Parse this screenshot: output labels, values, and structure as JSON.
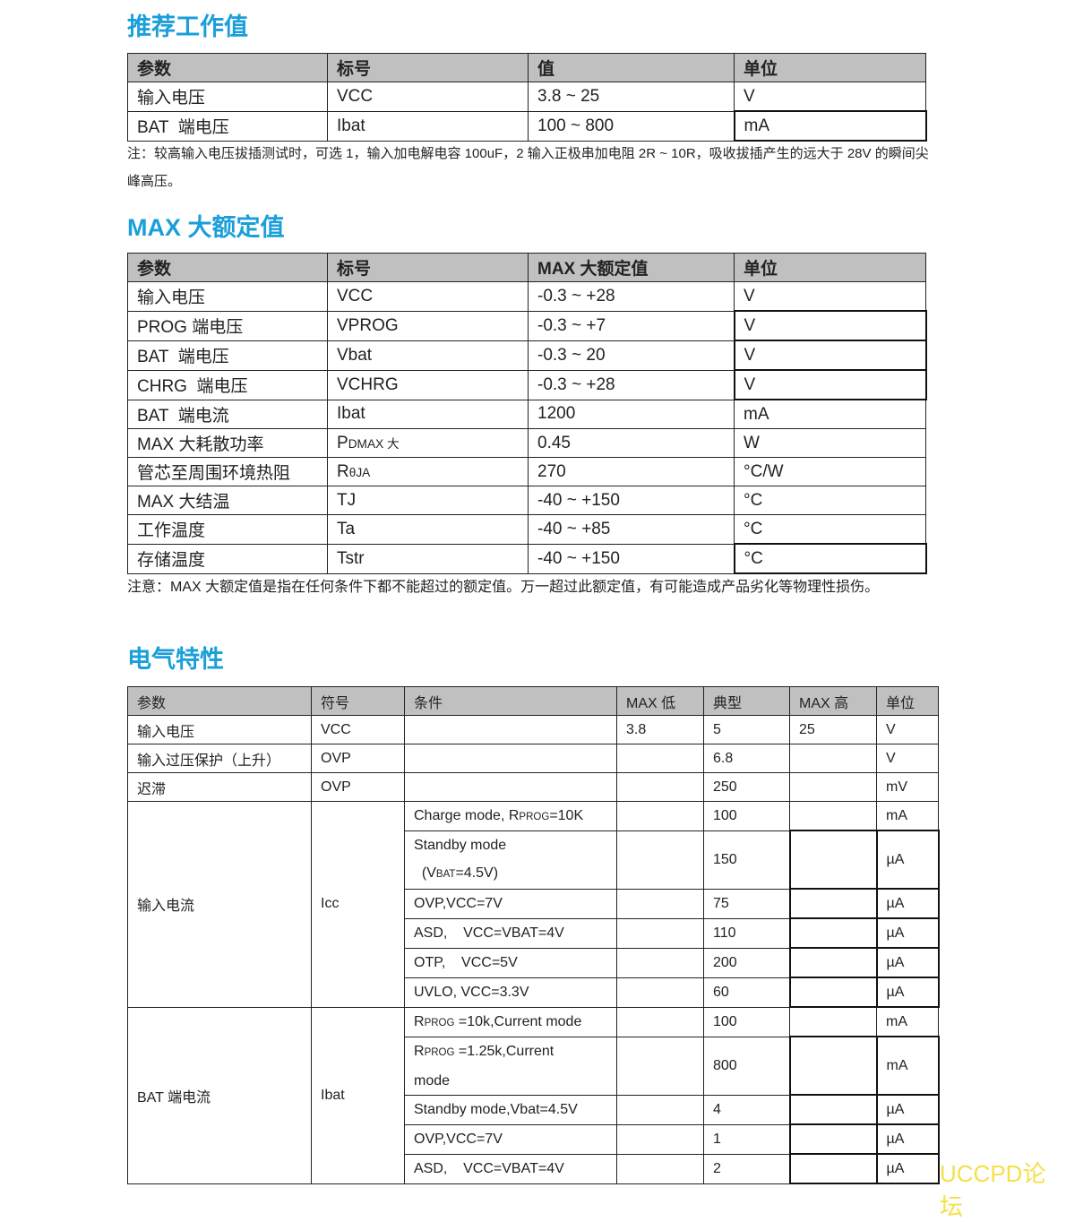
{
  "sections": {
    "recommended": {
      "title": "推荐工作值",
      "headers": [
        "参数",
        "标号",
        "值",
        "单位"
      ],
      "rows": [
        [
          "输入电压",
          "VCC",
          "3.8 ~ 25",
          "V"
        ],
        [
          "BAT  端电压",
          "Ibat",
          "100 ~ 800",
          "mA"
        ]
      ],
      "note": "注：较高输入电压拔插测试时，可选 1，输入加电解电容 100uF，2 输入正极串加电阻 2R ~ 10R，吸收拔插产生的远大于 28V 的瞬间尖峰高压。"
    },
    "absmax": {
      "title": "MAX 大额定值",
      "headers": [
        "参数",
        "标号",
        "MAX 大额定值",
        "单位"
      ],
      "rows": [
        [
          "输入电压",
          "VCC",
          "-0.3 ~ +28",
          "V"
        ],
        [
          "PROG 端电压",
          "VPROG",
          "-0.3 ~ +7",
          "V"
        ],
        [
          "BAT  端电压",
          "Vbat",
          "-0.3 ~ 20",
          "V"
        ],
        [
          "CHRG  端电压",
          "VCHRG",
          "-0.3 ~ +28",
          "V"
        ],
        [
          "BAT  端电流",
          "Ibat",
          "1200",
          "mA"
        ],
        [
          "MAX 大耗散功率",
          [
            {
              "t": "P"
            },
            {
              "s": "DMAX 大"
            }
          ],
          "0.45",
          "W"
        ],
        [
          "管芯至周围环境热阻",
          [
            {
              "t": "R"
            },
            {
              "s": "θJA"
            }
          ],
          "270",
          "°C/W"
        ],
        [
          "MAX 大结温",
          "TJ",
          "-40 ~ +150",
          "°C"
        ],
        [
          "工作温度",
          "Ta",
          "-40 ~ +85",
          "°C"
        ],
        [
          "存储温度",
          "Tstr",
          "-40 ~ +150",
          "°C"
        ]
      ],
      "note": "注意：MAX 大额定值是指在任何条件下都不能超过的额定值。万一超过此额定值，有可能造成产品劣化等物理性损伤。"
    },
    "electrical": {
      "title": "电气特性",
      "headers": [
        "参数",
        "符号",
        "条件",
        "MAX 低",
        "典型",
        "MAX 高",
        "单位"
      ],
      "simple_rows": [
        [
          "输入电压",
          "VCC",
          "",
          "3.8",
          "5",
          "25",
          "V"
        ],
        [
          "输入过压保护（上升）",
          "OVP",
          "",
          "",
          "6.8",
          "",
          "V"
        ],
        [
          "迟滞",
          "OVP",
          "",
          "",
          "250",
          "",
          "mV"
        ]
      ],
      "groups": [
        {
          "param": "输入电流",
          "symbol": "Icc",
          "rows": [
            [
              [
                {
                  "t": "Charge mode, R"
                },
                {
                  "s": "PROG"
                },
                {
                  "t": "=10K"
                }
              ],
              "",
              "100",
              "",
              "mA"
            ],
            [
              [
                {
                  "t": "Standby mode"
                },
                {
                  "br": true
                },
                {
                  "t": "  (V"
                },
                {
                  "s": "BAT"
                },
                {
                  "t": "=4.5V)"
                }
              ],
              "",
              "150",
              "",
              "µA"
            ],
            [
              "OVP,VCC=7V",
              "",
              "75",
              "",
              "µA"
            ],
            [
              "ASD,    VCC=VBAT=4V",
              "",
              "110",
              "",
              "µA"
            ],
            [
              "OTP,    VCC=5V",
              "",
              "200",
              "",
              "µA"
            ],
            [
              "UVLO, VCC=3.3V",
              "",
              "60",
              "",
              "µA"
            ]
          ]
        },
        {
          "param": "BAT 端电流",
          "symbol": "Ibat",
          "rows": [
            [
              [
                {
                  "t": "R"
                },
                {
                  "s": "PROG"
                },
                {
                  "t": " =10k,Current mode"
                }
              ],
              "",
              "100",
              "",
              "mA"
            ],
            [
              [
                {
                  "t": "R"
                },
                {
                  "s": "PROG"
                },
                {
                  "t": " =1.25k,Current"
                },
                {
                  "br": true
                },
                {
                  "t": "mode"
                }
              ],
              "",
              "800",
              "",
              "mA"
            ],
            [
              "Standby mode,Vbat=4.5V",
              "",
              "4",
              "",
              "µA"
            ],
            [
              "OVP,VCC=7V",
              "",
              "1",
              "",
              "µA"
            ],
            [
              "ASD,    VCC=VBAT=4V",
              "",
              "2",
              "",
              "µA"
            ]
          ]
        }
      ]
    }
  },
  "watermark": "UCCPD论坛",
  "colors": {
    "heading": "#1a9fd9",
    "header_bg": "#c0c0c0",
    "watermark": "#f3e14a"
  }
}
